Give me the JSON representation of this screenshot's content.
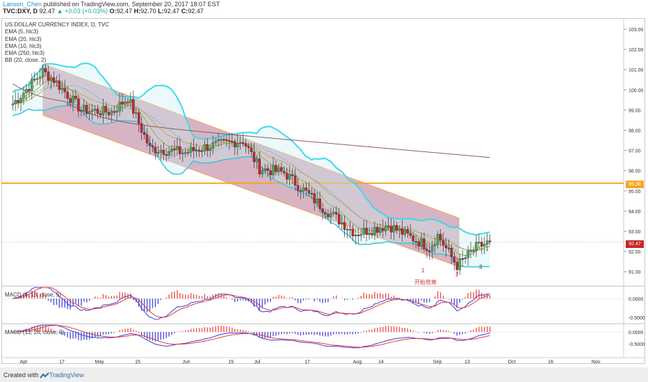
{
  "header": {
    "author": "Lanson_Chen",
    "published_text": "published on TradingView.com, September 20, 2017 18:07 EST",
    "symbol": "TVC:DXY, D",
    "last": "92.47",
    "change": "▲ +0.03 (+0.03%)",
    "o_label": "O:",
    "o": "92.47",
    "h_label": "H:",
    "h": "92.70",
    "l_label": "L:",
    "l": "92.47",
    "c_label": "C:",
    "c": "92.47"
  },
  "legend": {
    "title": "US DOLLAR CURRENCY INDEX, D, TVC",
    "items": [
      "EMA (5, hlc3)",
      "EMA (20, hlc3)",
      "EMA (10, hlc3)",
      "EMA (250, hlc3)",
      "BB (20, close, 2)"
    ]
  },
  "macd_panels": [
    {
      "label": "MACD (6, 13, close, 5)",
      "ticks": [
        "0.0000",
        "-0.5000"
      ]
    },
    {
      "label": "MACD (13, 26, close, 9)",
      "ticks": [
        "0.0000",
        "-0.5000"
      ]
    }
  ],
  "annotations": {
    "mark1": "1",
    "mark2": "2",
    "mark3": "3",
    "divergence_text": "开始背离"
  },
  "price_tags": {
    "horizontal_level": "95.38",
    "last_price": "92.47"
  },
  "footer": {
    "created_with": "Created with",
    "brand": "TradingView"
  },
  "colors": {
    "bb_band": "#3fd8ea",
    "bb_basis": "#5bb8ec",
    "ema5": "#e9a4a4",
    "ema10": "#7fbf5a",
    "ema20": "#c8a84b",
    "ema250": "#8a5a60",
    "bull": "#4caf50",
    "bear": "#c62828",
    "channel_fill": "#b06a8a",
    "level": "#f5a623",
    "macd_line": "#3a3ad8",
    "signal_line": "#e53935",
    "hist_pos": "#ef5350",
    "hist_neg": "#5050d8"
  },
  "chart_data": {
    "type": "candlestick",
    "title": "US DOLLAR CURRENCY INDEX, D, TVC",
    "y_axis": {
      "ticks": [
        103.0,
        102.0,
        101.0,
        100.0,
        99.0,
        98.0,
        97.0,
        96.0,
        95.0,
        94.0,
        93.0,
        92.0,
        91.0
      ],
      "range": [
        90.4,
        103.4
      ]
    },
    "x_axis": {
      "ticks": [
        "Apr",
        "17",
        "May",
        "15",
        "Jun",
        "19",
        "Jul",
        "17",
        "Aug",
        "14",
        "Sep",
        "13",
        "Oct",
        "16",
        "Nov"
      ]
    },
    "horizontal_level": 95.38,
    "last_price": 92.47,
    "close_path": [
      {
        "date": "Mar 30",
        "close": 99.3
      },
      {
        "date": "Apr 10",
        "close": 100.9
      },
      {
        "date": "Apr 14",
        "close": 100.5
      },
      {
        "date": "Apr 24",
        "close": 99.0
      },
      {
        "date": "May 5",
        "close": 98.9
      },
      {
        "date": "May 11",
        "close": 99.6
      },
      {
        "date": "May 19",
        "close": 97.1
      },
      {
        "date": "Jun 1",
        "close": 96.9
      },
      {
        "date": "Jun 9",
        "close": 97.2
      },
      {
        "date": "Jun 22",
        "close": 97.5
      },
      {
        "date": "Jun 28",
        "close": 96.1
      },
      {
        "date": "Jul 7",
        "close": 95.9
      },
      {
        "date": "Jul 20",
        "close": 94.3
      },
      {
        "date": "Aug 2",
        "close": 92.9
      },
      {
        "date": "Aug 14",
        "close": 93.3
      },
      {
        "date": "Aug 29",
        "close": 92.2
      },
      {
        "date": "Sep 1",
        "close": 92.8
      },
      {
        "date": "Sep 8",
        "close": 91.3
      },
      {
        "date": "Sep 15",
        "close": 92.2
      },
      {
        "date": "Sep 20",
        "close": 92.47
      }
    ]
  }
}
